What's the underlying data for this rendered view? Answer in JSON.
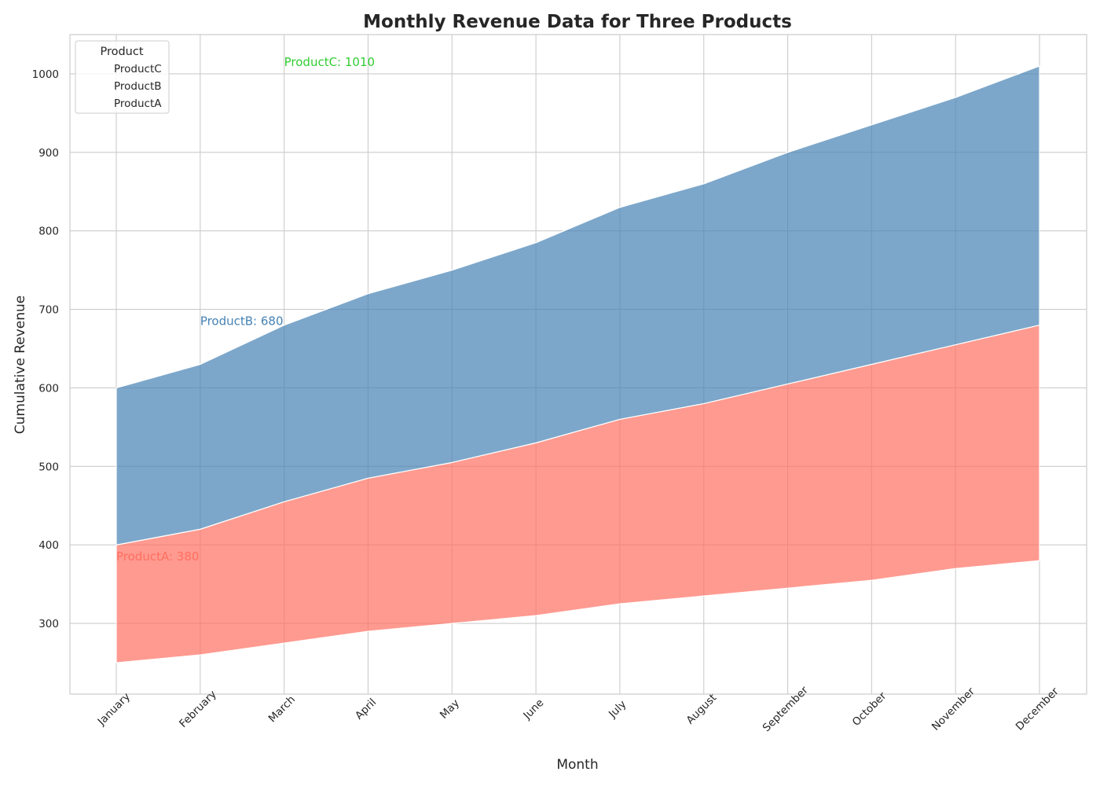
{
  "chart_data": {
    "type": "area",
    "title": "Monthly Revenue Data for Three Products",
    "xlabel": "Month",
    "ylabel": "Cumulative Revenue",
    "categories": [
      "January",
      "February",
      "March",
      "April",
      "May",
      "June",
      "July",
      "August",
      "September",
      "October",
      "November",
      "December"
    ],
    "ylim": [
      210,
      1050
    ],
    "yticks": [
      300,
      400,
      500,
      600,
      700,
      800,
      900,
      1000
    ],
    "grid": true,
    "stacked": true,
    "series": [
      {
        "name": "ProductA",
        "color": "#FF6F61",
        "lower": [
          250,
          260,
          275,
          290,
          300,
          310,
          325,
          335,
          345,
          355,
          370,
          380
        ],
        "upper": [
          400,
          420,
          455,
          485,
          505,
          530,
          560,
          580,
          605,
          630,
          655,
          680
        ]
      },
      {
        "name": "ProductB",
        "color": "#4682B4",
        "lower": [
          400,
          420,
          455,
          485,
          505,
          530,
          560,
          580,
          605,
          630,
          655,
          680
        ],
        "upper": [
          600,
          630,
          680,
          720,
          750,
          785,
          830,
          860,
          900,
          935,
          970,
          1010
        ]
      },
      {
        "name": "ProductC",
        "color": "#32CD32",
        "lower": [
          600,
          630,
          680,
          720,
          750,
          785,
          830,
          860,
          900,
          935,
          970,
          1010
        ],
        "upper": [
          600,
          630,
          680,
          720,
          750,
          785,
          830,
          860,
          900,
          935,
          970,
          1010
        ]
      }
    ],
    "annotations": [
      {
        "text": "ProductA: 380",
        "category": "January",
        "value": 380,
        "color": "#FF6F61"
      },
      {
        "text": "ProductB: 680",
        "category": "February",
        "value": 680,
        "color": "#4682B4"
      },
      {
        "text": "ProductC: 1010",
        "category": "March",
        "value": 1010,
        "color": "#32CD32"
      }
    ],
    "legend": {
      "title": "Product",
      "placement": "top-left",
      "entries": [
        "ProductC",
        "ProductB",
        "ProductA"
      ]
    }
  }
}
